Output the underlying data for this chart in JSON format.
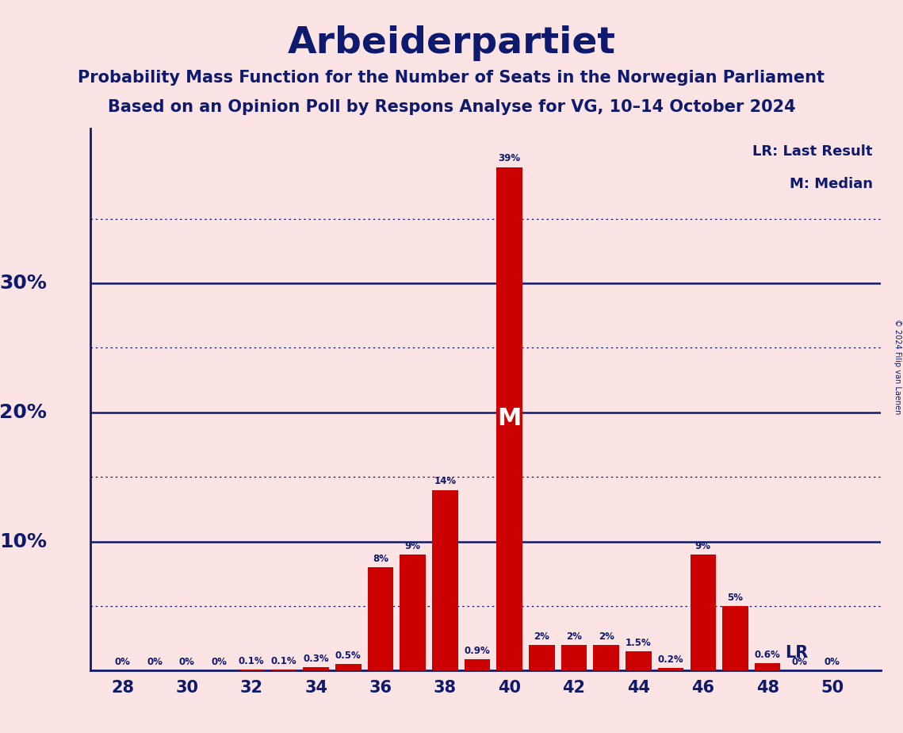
{
  "title": "Arbeiderpartiet",
  "subtitle1": "Probability Mass Function for the Number of Seats in the Norwegian Parliament",
  "subtitle2": "Based on an Opinion Poll by Respons Analyse for VG, 10–14 October 2024",
  "copyright": "© 2024 Filip van Laenen",
  "seats": [
    28,
    29,
    30,
    31,
    32,
    33,
    34,
    35,
    36,
    37,
    38,
    39,
    40,
    41,
    42,
    43,
    44,
    45,
    46,
    47,
    48,
    49,
    50
  ],
  "probabilities": [
    0.0,
    0.0,
    0.0,
    0.0,
    0.1,
    0.1,
    0.3,
    0.5,
    8.0,
    9.0,
    14.0,
    0.9,
    39.0,
    2.0,
    2.0,
    2.0,
    1.5,
    0.2,
    9.0,
    5.0,
    0.6,
    0.0,
    0.0
  ],
  "labels": [
    "0%",
    "0%",
    "0%",
    "0%",
    "0.1%",
    "0.1%",
    "0.3%",
    "0.5%",
    "8%",
    "9%",
    "14%",
    "0.9%",
    "39%",
    "2%",
    "2%",
    "2%",
    "1.5%",
    "0.2%",
    "9%",
    "5%",
    "0.6%",
    "0%",
    "0%"
  ],
  "bar_color": "#cc0000",
  "median_seat": 40,
  "last_result_seat": 48,
  "background_color": "#fce4e4",
  "text_color": "#0d1a6e",
  "legend_lr": "LR: Last Result",
  "legend_m": "M: Median",
  "xlim_min": 27.0,
  "xlim_max": 51.5,
  "ylim_min": 0,
  "ylim_max": 42,
  "major_yticks": [
    10,
    20,
    30
  ],
  "dotted_yticks": [
    5,
    15,
    25,
    35
  ],
  "xticks": [
    28,
    30,
    32,
    34,
    36,
    38,
    40,
    42,
    44,
    46,
    48,
    50
  ],
  "bar_width": 0.8
}
